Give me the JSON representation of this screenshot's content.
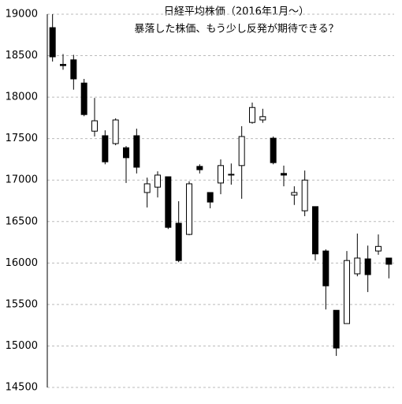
{
  "chart_data": {
    "type": "candlestick",
    "title": [
      "日経平均株価（2016年1月～）",
      "暴落した株価、もう少し反発が期待できる？"
    ],
    "categories": [
      null,
      null,
      null,
      null,
      null,
      null,
      null,
      null,
      null,
      null,
      null,
      null,
      null,
      null,
      null,
      null,
      null,
      null,
      null,
      null,
      null,
      null,
      null,
      null,
      null,
      null,
      null,
      null,
      null,
      null,
      null,
      null,
      null
    ],
    "open": [
      18838,
      18395,
      18450,
      18170,
      17590,
      17535,
      17440,
      17390,
      17535,
      16850,
      16915,
      17040,
      16480,
      16345,
      17165,
      16850,
      16965,
      17060,
      17175,
      17695,
      17725,
      17505,
      17080,
      16820,
      16630,
      16680,
      16145,
      15430,
      15270,
      15870,
      16050,
      16145,
      16060
    ],
    "high": [
      19000,
      18520,
      18510,
      18220,
      17990,
      17600,
      17745,
      17410,
      17620,
      17030,
      17105,
      17040,
      16745,
      16985,
      17190,
      16850,
      17250,
      17200,
      17650,
      17935,
      17860,
      17525,
      17175,
      16925,
      17115,
      16680,
      16165,
      15430,
      16145,
      16355,
      16210,
      16345,
      16060
    ],
    "low": [
      18429,
      18330,
      18090,
      17770,
      17525,
      17190,
      17420,
      16965,
      17080,
      16670,
      16790,
      16410,
      16010,
      16335,
      17080,
      16660,
      16830,
      16945,
      16775,
      17680,
      17690,
      17190,
      16925,
      16700,
      16565,
      16030,
      15440,
      14880,
      15270,
      15840,
      15650,
      16100,
      15815
    ],
    "close": [
      18486,
      18380,
      18220,
      17790,
      17715,
      17220,
      17725,
      17270,
      17155,
      16955,
      17060,
      16430,
      16030,
      16955,
      17125,
      16735,
      17175,
      17070,
      17525,
      17875,
      17765,
      17210,
      17060,
      16850,
      17000,
      16110,
      15725,
      14975,
      16030,
      16060,
      15860,
      16200,
      15985
    ],
    "up_color": "#ffffff",
    "down_color": "#000000",
    "ylim": [
      14500,
      19000
    ],
    "yticks": [
      14500,
      15000,
      15500,
      16000,
      16500,
      17000,
      17500,
      18000,
      18500,
      19000
    ],
    "grid": true
  }
}
